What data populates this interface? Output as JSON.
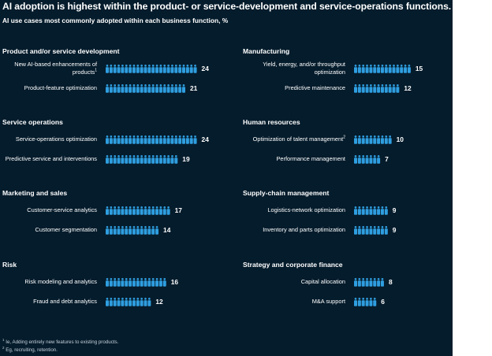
{
  "title": "AI adoption is highest within the product- or service-development and service-operations functions.",
  "subtitle": "AI use cases most commonly adopted within each business function, %",
  "colors": {
    "background": "#051c2c",
    "icon": "#2f9ee0",
    "text": "#ffffff"
  },
  "chart_data": {
    "type": "isotype",
    "unit": "%",
    "icon": "person-icon",
    "groups": [
      {
        "name": "Product and/or service development",
        "items": [
          {
            "label": "New AI-based enhancements of products",
            "footnote_ref": "1",
            "value": 24
          },
          {
            "label": "Product-feature optimization",
            "value": 21
          }
        ]
      },
      {
        "name": "Service operations",
        "items": [
          {
            "label": "Service-operations optimization",
            "value": 24
          },
          {
            "label": "Predictive service and interventions",
            "value": 19
          }
        ]
      },
      {
        "name": "Marketing and sales",
        "items": [
          {
            "label": "Customer-service analytics",
            "value": 17
          },
          {
            "label": "Customer segmentation",
            "value": 14
          }
        ]
      },
      {
        "name": "Risk",
        "items": [
          {
            "label": "Risk modeling and analytics",
            "value": 16
          },
          {
            "label": "Fraud and debt analytics",
            "value": 12
          }
        ]
      },
      {
        "name": "Manufacturing",
        "items": [
          {
            "label": "Yield, energy, and/or throughput optimization",
            "value": 15
          },
          {
            "label": "Predictive maintenance",
            "value": 12
          }
        ]
      },
      {
        "name": "Human resources",
        "items": [
          {
            "label": "Optimization of talent management",
            "footnote_ref": "2",
            "value": 10
          },
          {
            "label": "Performance management",
            "value": 7
          }
        ]
      },
      {
        "name": "Supply-chain management",
        "items": [
          {
            "label": "Logistics-network optimization",
            "value": 9
          },
          {
            "label": "Inventory and parts optimization",
            "value": 9
          }
        ]
      },
      {
        "name": "Strategy and corporate finance",
        "items": [
          {
            "label": "Capital allocation",
            "value": 8
          },
          {
            "label": "M&A support",
            "value": 6
          }
        ]
      }
    ]
  },
  "footnotes": [
    {
      "mark": "1",
      "text": "Ie, Adding entirely new features to existing products."
    },
    {
      "mark": "2",
      "text": "Eg, recruiting, retention."
    }
  ]
}
